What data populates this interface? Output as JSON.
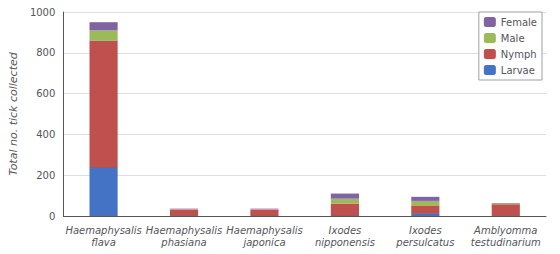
{
  "chart_data": {
    "type": "bar",
    "stacked": true,
    "categories": [
      "Haemaphysalis\nflava",
      "Haemaphysalis\nphasiana",
      "Haemaphysalis\njaponica",
      "Ixodes\nnipponensis",
      "Ixodes\npersulcatus",
      "Amblyomma\ntestudinarium"
    ],
    "series": [
      {
        "name": "Larvae",
        "color": "#4472C4",
        "values": [
          240,
          0,
          5,
          5,
          10,
          0
        ]
      },
      {
        "name": "Nymph",
        "color": "#C0504D",
        "values": [
          620,
          30,
          25,
          55,
          42,
          58
        ]
      },
      {
        "name": "Male",
        "color": "#9BBB59",
        "values": [
          50,
          3,
          3,
          25,
          22,
          3
        ]
      },
      {
        "name": "Female",
        "color": "#8064A2",
        "values": [
          40,
          3,
          3,
          25,
          20,
          3
        ]
      }
    ],
    "ylabel": "Total no. tick collected",
    "ylim": [
      0,
      1000
    ],
    "yticks": [
      0,
      200,
      400,
      600,
      800,
      1000
    ],
    "grid": true,
    "legend": "upper right"
  }
}
